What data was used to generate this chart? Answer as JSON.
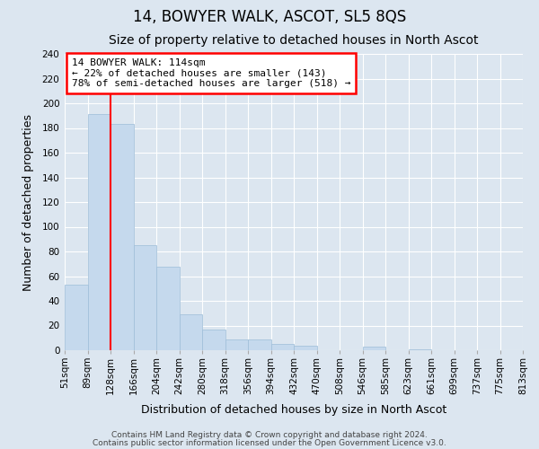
{
  "title": "14, BOWYER WALK, ASCOT, SL5 8QS",
  "subtitle": "Size of property relative to detached houses in North Ascot",
  "xlabel": "Distribution of detached houses by size in North Ascot",
  "ylabel": "Number of detached properties",
  "bar_values": [
    53,
    191,
    183,
    85,
    68,
    29,
    17,
    9,
    9,
    5,
    4,
    0,
    0,
    3,
    0,
    1,
    0,
    0,
    0,
    0
  ],
  "bar_labels": [
    "51sqm",
    "89sqm",
    "128sqm",
    "166sqm",
    "204sqm",
    "242sqm",
    "280sqm",
    "318sqm",
    "356sqm",
    "394sqm",
    "432sqm",
    "470sqm",
    "508sqm",
    "546sqm",
    "585sqm",
    "623sqm",
    "661sqm",
    "699sqm",
    "737sqm",
    "775sqm",
    "813sqm"
  ],
  "bar_color": "#c5d9ed",
  "bar_edge_color": "#9dbdd8",
  "grid_color": "#d0dce8",
  "bg_color": "#dce6f0",
  "ylim": [
    0,
    240
  ],
  "yticks": [
    0,
    20,
    40,
    60,
    80,
    100,
    120,
    140,
    160,
    180,
    200,
    220,
    240
  ],
  "red_line_x": 2,
  "annotation_text": "14 BOWYER WALK: 114sqm\n← 22% of detached houses are smaller (143)\n78% of semi-detached houses are larger (518) →",
  "footer_line1": "Contains HM Land Registry data © Crown copyright and database right 2024.",
  "footer_line2": "Contains public sector information licensed under the Open Government Licence v3.0.",
  "title_fontsize": 12,
  "subtitle_fontsize": 10,
  "tick_label_fontsize": 7.5,
  "ylabel_fontsize": 9,
  "xlabel_fontsize": 9,
  "annotation_fontsize": 8,
  "footer_fontsize": 6.5
}
